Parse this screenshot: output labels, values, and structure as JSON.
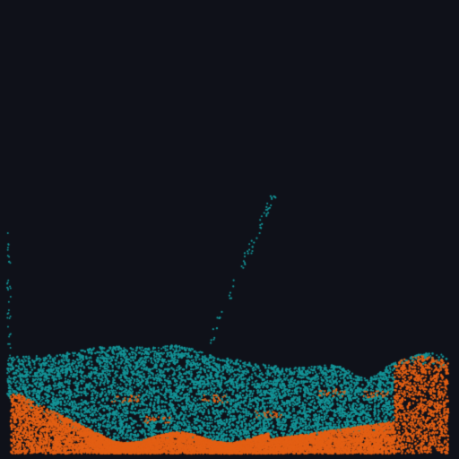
{
  "simulation": {
    "kind": "particle-fluid",
    "background_color": "#0f1119",
    "fluids": [
      {
        "name": "teal-fluid",
        "color": "#149497",
        "layer": "upper"
      },
      {
        "name": "orange-fluid",
        "color": "#e35f14",
        "layer": "lower"
      }
    ]
  }
}
